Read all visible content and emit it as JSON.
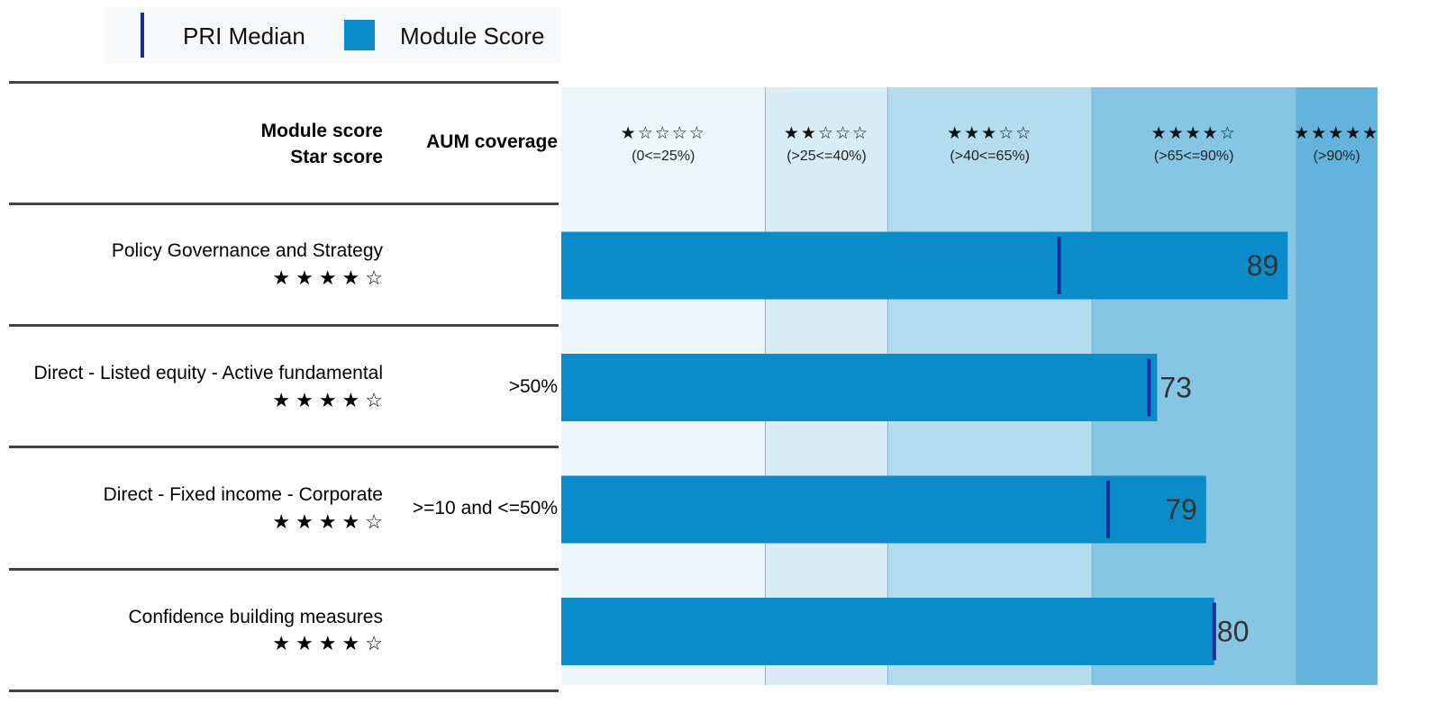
{
  "legend": {
    "median_label": "PRI Median",
    "score_label": "Module Score",
    "median_color": "#1b2fa0",
    "score_color": "#0a8bca"
  },
  "headers": {
    "module_score": "Module score",
    "star_score": "Star score",
    "aum_coverage": "AUM coverage"
  },
  "chart_data": {
    "type": "bar",
    "orientation": "horizontal",
    "xlim": [
      0,
      100
    ],
    "bands": [
      {
        "stars": "★☆☆☆☆",
        "label": "(0<=25%)",
        "from": 0,
        "to": 25,
        "color": "#eef6fa"
      },
      {
        "stars": "★★☆☆☆",
        "label": "(>25<=40%)",
        "from": 25,
        "to": 40,
        "color": "#d9ecf6"
      },
      {
        "stars": "★★★☆☆",
        "label": "(>40<=65%)",
        "from": 40,
        "to": 65,
        "color": "#b3dcee"
      },
      {
        "stars": "★★★★☆",
        "label": "(>65<=90%)",
        "from": 65,
        "to": 90,
        "color": "#84c6e4"
      },
      {
        "stars": "★★★★★",
        "label": "(>90%)",
        "from": 90,
        "to": 100,
        "color": "#62b4dc"
      }
    ],
    "rows": [
      {
        "label": "Policy Governance and Strategy",
        "stars": "★★★★☆",
        "aum": "",
        "score": 89,
        "median": 61
      },
      {
        "label": "Direct - Listed equity - Active fundamental",
        "stars": "★★★★☆",
        "aum": ">50%",
        "score": 73,
        "median": 72
      },
      {
        "label": "Direct - Fixed income - Corporate",
        "stars": "★★★★☆",
        "aum": ">=10 and <=50%",
        "score": 79,
        "median": 67
      },
      {
        "label": "Confidence building measures",
        "stars": "★★★★☆",
        "aum": "",
        "score": 80,
        "median": 80
      }
    ]
  }
}
